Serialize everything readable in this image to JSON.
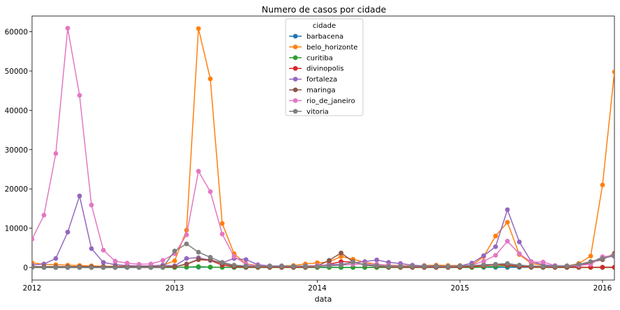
{
  "chart_data": {
    "type": "line",
    "title": "Numero de casos por cidade",
    "xlabel": "data",
    "ylabel": "",
    "legend_title": "cidade",
    "legend_position": "top-center",
    "grid": false,
    "x": [
      "2012-01",
      "2012-02",
      "2012-03",
      "2012-04",
      "2012-05",
      "2012-06",
      "2012-07",
      "2012-08",
      "2012-09",
      "2012-10",
      "2012-11",
      "2012-12",
      "2013-01",
      "2013-02",
      "2013-03",
      "2013-04",
      "2013-05",
      "2013-06",
      "2013-07",
      "2013-08",
      "2013-09",
      "2013-10",
      "2013-11",
      "2013-12",
      "2014-01",
      "2014-02",
      "2014-03",
      "2014-04",
      "2014-05",
      "2014-06",
      "2014-07",
      "2014-08",
      "2014-09",
      "2014-10",
      "2014-11",
      "2014-12",
      "2015-01",
      "2015-02",
      "2015-03",
      "2015-04",
      "2015-05",
      "2015-06",
      "2015-07",
      "2015-08",
      "2015-09",
      "2015-10",
      "2015-11",
      "2015-12",
      "2016-01",
      "2016-02"
    ],
    "xlim": [
      "2012-01",
      "2016-02"
    ],
    "xticks": [
      {
        "value": "2012-01",
        "label": "2012"
      },
      {
        "value": "2013-01",
        "label": "2013"
      },
      {
        "value": "2014-01",
        "label": "2014"
      },
      {
        "value": "2015-01",
        "label": "2015"
      },
      {
        "value": "2016-01",
        "label": "2016"
      }
    ],
    "ylim": [
      -3200,
      64000
    ],
    "yticks": [
      0,
      10000,
      20000,
      30000,
      40000,
      50000,
      60000
    ],
    "ytick_labels": [
      "0",
      "10000",
      "20000",
      "30000",
      "40000",
      "50000",
      "60000"
    ],
    "series": [
      {
        "name": "barbacena",
        "color": "#1f77b4",
        "values": [
          50,
          40,
          40,
          40,
          40,
          40,
          40,
          40,
          40,
          40,
          40,
          40,
          40,
          60,
          80,
          60,
          40,
          40,
          40,
          40,
          40,
          40,
          40,
          40,
          40,
          40,
          40,
          40,
          40,
          40,
          40,
          40,
          40,
          40,
          40,
          40,
          40,
          40,
          40,
          40,
          40,
          40,
          40,
          40,
          40,
          40,
          40,
          40,
          60,
          80
        ]
      },
      {
        "name": "belo_horizonte",
        "color": "#ff7f0e",
        "values": [
          1200,
          800,
          700,
          600,
          500,
          400,
          300,
          300,
          300,
          300,
          400,
          600,
          1700,
          9500,
          60800,
          48000,
          11200,
          3500,
          900,
          500,
          400,
          400,
          500,
          900,
          1200,
          1400,
          2800,
          2100,
          1300,
          800,
          600,
          500,
          400,
          500,
          600,
          500,
          500,
          500,
          2800,
          8000,
          11500,
          3300,
          1000,
          600,
          400,
          400,
          1000,
          2900,
          21000,
          49800
        ]
      },
      {
        "name": "curitiba",
        "color": "#2ca02c",
        "values": [
          0,
          0,
          0,
          0,
          0,
          0,
          0,
          0,
          0,
          0,
          0,
          0,
          0,
          100,
          200,
          100,
          50,
          0,
          0,
          0,
          0,
          0,
          0,
          0,
          0,
          0,
          0,
          0,
          0,
          0,
          0,
          0,
          0,
          0,
          0,
          0,
          0,
          0,
          100,
          300,
          400,
          200,
          50,
          0,
          0,
          0,
          0,
          0,
          0,
          0
        ]
      },
      {
        "name": "divinopolis",
        "color": "#d62728",
        "values": [
          100,
          80,
          80,
          80,
          80,
          60,
          60,
          60,
          60,
          60,
          60,
          80,
          200,
          800,
          2000,
          1800,
          600,
          200,
          100,
          80,
          60,
          60,
          60,
          80,
          200,
          800,
          1500,
          1400,
          700,
          300,
          100,
          80,
          60,
          60,
          60,
          80,
          100,
          200,
          400,
          700,
          600,
          300,
          100,
          80,
          60,
          60,
          60,
          60,
          60,
          60
        ]
      },
      {
        "name": "fortaleza",
        "color": "#9467bd",
        "values": [
          600,
          900,
          2300,
          9000,
          18200,
          4800,
          1300,
          700,
          500,
          400,
          400,
          600,
          400,
          2300,
          2500,
          1800,
          1200,
          2300,
          2000,
          700,
          400,
          400,
          300,
          400,
          500,
          700,
          800,
          1200,
          1500,
          1900,
          1300,
          1000,
          600,
          400,
          400,
          300,
          400,
          1100,
          3000,
          5300,
          14700,
          6500,
          1500,
          700,
          400,
          400,
          600,
          1200,
          2700,
          2800
        ]
      },
      {
        "name": "maringa",
        "color": "#8c564b",
        "values": [
          200,
          200,
          200,
          200,
          200,
          200,
          200,
          200,
          200,
          200,
          200,
          200,
          200,
          900,
          2100,
          2000,
          1000,
          400,
          200,
          200,
          200,
          200,
          200,
          200,
          400,
          1800,
          3700,
          1500,
          600,
          300,
          200,
          200,
          200,
          200,
          200,
          200,
          300,
          400,
          700,
          800,
          900,
          600,
          300,
          200,
          200,
          200,
          300,
          1300,
          2000,
          3600
        ]
      },
      {
        "name": "rio_de_janeiro",
        "color": "#e377c2",
        "values": [
          7200,
          13300,
          29000,
          60900,
          43800,
          15900,
          4400,
          1600,
          1100,
          800,
          900,
          1800,
          3500,
          8300,
          24500,
          19300,
          8500,
          2800,
          800,
          400,
          300,
          300,
          300,
          300,
          500,
          500,
          600,
          800,
          900,
          800,
          500,
          400,
          300,
          300,
          300,
          300,
          400,
          600,
          1600,
          3100,
          6700,
          3500,
          1400,
          1400,
          500,
          400,
          500,
          800,
          2700,
          3100
        ]
      },
      {
        "name": "vitoria",
        "color": "#7f7f7f",
        "values": [
          0,
          0,
          0,
          0,
          0,
          0,
          0,
          0,
          0,
          0,
          0,
          0,
          4200,
          6000,
          3900,
          2600,
          1300,
          600,
          400,
          300,
          300,
          300,
          300,
          300,
          300,
          400,
          600,
          1400,
          700,
          500,
          300,
          300,
          300,
          300,
          300,
          300,
          400,
          500,
          600,
          800,
          1000,
          600,
          400,
          300,
          300,
          400,
          800,
          1500,
          2300,
          3000
        ]
      }
    ]
  }
}
